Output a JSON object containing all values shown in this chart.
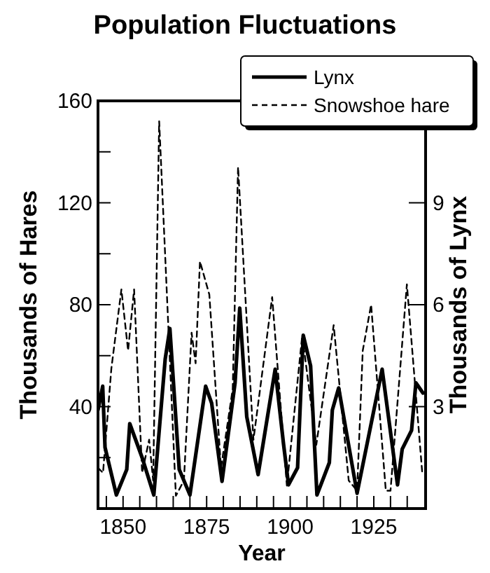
{
  "chart_data": {
    "type": "line",
    "title": "Population Fluctuations",
    "xlabel": "Year",
    "ylabel": "Thousands of Hares",
    "y2label": "Thousands of Lynx",
    "xlim": [
      1842.5,
      1940.5
    ],
    "xticks": [
      {
        "value": 1845,
        "label": null
      },
      1850,
      {
        "value": 1855,
        "label": null
      },
      {
        "value": 1860,
        "label": null
      },
      {
        "value": 1865,
        "label": null
      },
      {
        "value": 1870,
        "label": null
      },
      1875,
      {
        "value": 1880,
        "label": null
      },
      {
        "value": 1885,
        "label": null
      },
      {
        "value": 1890,
        "label": null
      },
      {
        "value": 1895,
        "label": null
      },
      1900,
      {
        "value": 1905,
        "label": null
      },
      {
        "value": 1910,
        "label": null
      },
      {
        "value": 1915,
        "label": null
      },
      {
        "value": 1920,
        "label": null
      },
      1925,
      {
        "value": 1930,
        "label": null
      },
      {
        "value": 1935,
        "label": null
      }
    ],
    "ylim": [
      0,
      160
    ],
    "yticks": [
      {
        "value": 20,
        "label": null
      },
      40,
      {
        "value": 60,
        "label": null
      },
      80,
      {
        "value": 100,
        "label": null
      },
      120,
      {
        "value": 140,
        "label": null
      },
      160
    ],
    "y2lim": [
      0,
      12
    ],
    "y2ticks": [
      3,
      6,
      9
    ],
    "legend": "top right",
    "series": [
      {
        "name": "Lynx",
        "color": "#000000",
        "axis": "y2",
        "line_style": "solid",
        "x": [
          1842.5,
          1843.9,
          1844.6,
          1848,
          1851.1,
          1852,
          1855.7,
          1859.2,
          1862.6,
          1864,
          1866.8,
          1870,
          1874.7,
          1876.5,
          1879.6,
          1883.5,
          1884.9,
          1887,
          1890.4,
          1895.5,
          1898,
          1899.5,
          1902.2,
          1903.9,
          1906.1,
          1908,
          1911.7,
          1912.6,
          1914.5,
          1920,
          1927.5,
          1932.1,
          1933.5,
          1936.3,
          1937.6,
          1939.7
        ],
        "values": [
          2.9,
          3.6,
          1.8,
          0.4,
          1.15,
          2.5,
          1.5,
          0.4,
          4.4,
          5.3,
          1.15,
          0.4,
          3.6,
          3.1,
          0.8,
          3.7,
          5.9,
          2.7,
          1.0,
          4.1,
          1.9,
          0.7,
          1.2,
          5.1,
          4.2,
          0.4,
          1.35,
          2.9,
          3.55,
          0.45,
          4.1,
          0.7,
          1.75,
          2.3,
          3.7,
          3.4
        ]
      },
      {
        "name": "Snowshoe hare",
        "color": "#000000",
        "line_style": "dashed",
        "x": [
          1842.5,
          1844,
          1846.5,
          1849.5,
          1851.5,
          1853.3,
          1855.7,
          1857.8,
          1859,
          1860.8,
          1865.8,
          1868.2,
          1870.5,
          1871.7,
          1873,
          1875.8,
          1879.3,
          1882.8,
          1884.4,
          1889,
          1894.6,
          1899,
          1903.6,
          1907.8,
          1913,
          1917.5,
          1920,
          1921.7,
          1924.2,
          1928.6,
          1930,
          1934.9,
          1939.5
        ],
        "values": [
          16,
          14,
          55,
          86,
          62,
          86,
          14,
          27,
          11,
          152,
          5,
          11,
          69,
          57,
          97,
          84,
          16,
          47,
          134,
          27,
          83,
          9,
          68,
          25,
          72,
          11,
          7,
          62,
          80,
          7,
          7,
          88,
          14
        ]
      }
    ]
  }
}
